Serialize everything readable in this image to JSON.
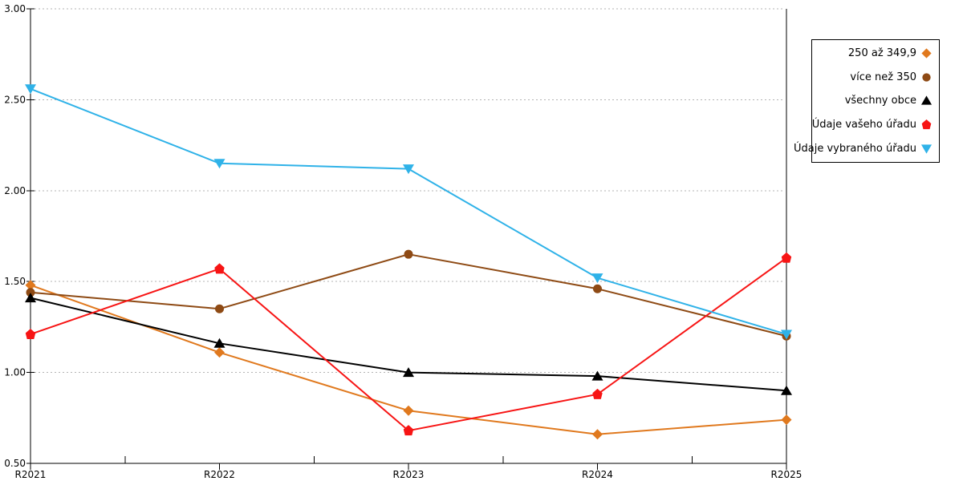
{
  "chart_data": {
    "type": "line",
    "title": "",
    "xlabel": "",
    "ylabel": "",
    "categories": [
      "R2021",
      "R2022",
      "R2023",
      "R2024",
      "R2025"
    ],
    "ylim": [
      0.5,
      3.0
    ],
    "yticks": [
      {
        "label": "0.50",
        "value": 0.5
      },
      {
        "label": "1.00",
        "value": 1.0
      },
      {
        "label": "1.50",
        "value": 1.5
      },
      {
        "label": "2.00",
        "value": 2.0
      },
      {
        "label": "2.50",
        "value": 2.5
      },
      {
        "label": "3.00",
        "value": 3.0
      }
    ],
    "grid": "horizontal-dotted",
    "grid_color": "#b3b3b3",
    "axis_color": "#000000",
    "legend_position": "outside-right",
    "series": [
      {
        "name": "250 až 349,9",
        "marker": "diamond",
        "color": "#e0791e",
        "values": [
          1.48,
          1.11,
          0.79,
          0.66,
          0.74
        ]
      },
      {
        "name": "více než 350",
        "marker": "circle",
        "color": "#8e4a14",
        "values": [
          1.44,
          1.35,
          1.65,
          1.46,
          1.2
        ]
      },
      {
        "name": "všechny obce",
        "marker": "triangle-up",
        "color": "#000000",
        "values": [
          1.41,
          1.16,
          1.0,
          0.98,
          0.9
        ]
      },
      {
        "name": "Údaje vašeho úřadu",
        "marker": "pentagon",
        "color": "#f71414",
        "values": [
          1.21,
          1.57,
          0.68,
          0.88,
          1.63
        ]
      },
      {
        "name": "Údaje vybraného úřadu",
        "marker": "triangle-down",
        "color": "#2fb2e8",
        "values": [
          2.56,
          2.15,
          2.12,
          1.52,
          1.21
        ]
      }
    ]
  }
}
